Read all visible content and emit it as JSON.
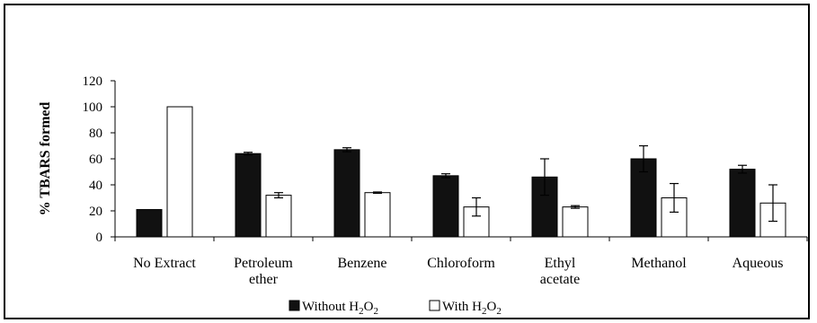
{
  "chart_data": {
    "type": "bar",
    "title": "",
    "xlabel": "",
    "ylabel": "% TBARS formed",
    "ylim": [
      0,
      120
    ],
    "yticks": [
      0,
      20,
      40,
      60,
      80,
      100,
      120
    ],
    "grid": false,
    "legend_position": "bottom",
    "categories": [
      [
        "No Extract"
      ],
      [
        "Petroleum",
        "ether"
      ],
      [
        "Benzene"
      ],
      [
        "Chloroform"
      ],
      [
        "Ethyl",
        "acetate"
      ],
      [
        "Methanol"
      ],
      [
        "Aqueous"
      ]
    ],
    "series": [
      {
        "name": "Without H2O2",
        "color": "#111111",
        "values": [
          21,
          64,
          67,
          47,
          46,
          60,
          52
        ],
        "errors": [
          0,
          1,
          1.5,
          1.5,
          14,
          10,
          3
        ]
      },
      {
        "name": "With H2O2",
        "color": "#ffffff",
        "values": [
          100,
          32,
          34,
          23,
          23,
          30,
          26
        ],
        "errors": [
          0,
          2,
          0.5,
          7,
          1,
          11,
          14
        ]
      }
    ]
  }
}
